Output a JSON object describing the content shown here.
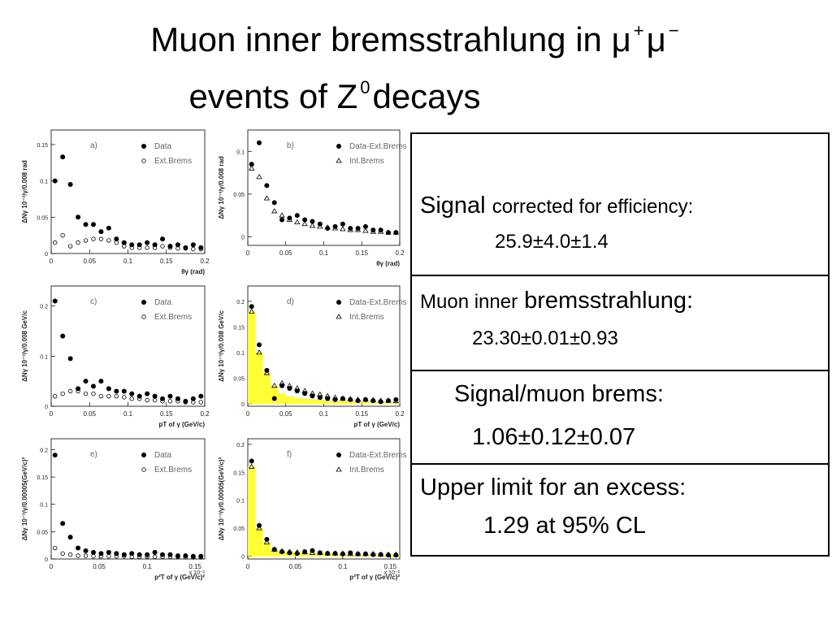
{
  "title": {
    "line1": [
      "Muon inner bremsstrahlung in μ",
      "+",
      "μ",
      "−"
    ],
    "line2": [
      "events of Z",
      "0",
      "decays"
    ]
  },
  "chart_data": [
    {
      "type": "scatter",
      "label": "a)",
      "ylabel": "ΔNγ 10⁻³/γ/0.008 rad",
      "xlabel": "θγ (rad)",
      "xlim": [
        0,
        0.2
      ],
      "xticks": [
        0,
        0.05,
        0.1,
        0.15,
        0.2
      ],
      "ylim": [
        0,
        0.17
      ],
      "yticks": [
        0,
        0.05,
        0.1,
        0.15
      ],
      "x": [
        0.005,
        0.015,
        0.025,
        0.035,
        0.045,
        0.055,
        0.065,
        0.075,
        0.085,
        0.095,
        0.105,
        0.115,
        0.125,
        0.135,
        0.145,
        0.155,
        0.165,
        0.175,
        0.185,
        0.195
      ],
      "series": [
        {
          "name": "Data",
          "marker": "dot",
          "color": "#000000",
          "values": [
            0.1,
            0.133,
            0.095,
            0.05,
            0.04,
            0.04,
            0.03,
            0.035,
            0.02,
            0.015,
            0.012,
            0.012,
            0.015,
            0.012,
            0.02,
            0.01,
            0.012,
            0.008,
            0.012,
            0.008
          ]
        },
        {
          "name": "Ext.Brems",
          "marker": "circle",
          "color": "#000000",
          "values": [
            0.015,
            0.025,
            0.01,
            0.015,
            0.018,
            0.02,
            0.02,
            0.018,
            0.015,
            0.01,
            0.008,
            0.008,
            0.008,
            0.008,
            0.01,
            0.008,
            0.007,
            0.007,
            0.006,
            0.006
          ]
        }
      ]
    },
    {
      "type": "scatter",
      "label": "b)",
      "ylabel": "ΔNγ 10⁻³/γ/0.008 rad",
      "xlabel": "θγ (rad)",
      "xlim": [
        0,
        0.2
      ],
      "xticks": [
        0,
        0.05,
        0.1,
        0.15,
        0.2
      ],
      "ylim": [
        -0.01,
        0.125
      ],
      "yticks": [
        0,
        0.05,
        0.1
      ],
      "x": [
        0.005,
        0.015,
        0.025,
        0.035,
        0.045,
        0.055,
        0.065,
        0.075,
        0.085,
        0.095,
        0.105,
        0.115,
        0.125,
        0.135,
        0.145,
        0.155,
        0.165,
        0.175,
        0.185,
        0.195
      ],
      "series": [
        {
          "name": "Data-Ext.Brems",
          "marker": "dot",
          "color": "#000000",
          "values": [
            0.085,
            0.11,
            0.06,
            0.04,
            0.02,
            0.022,
            0.025,
            0.02,
            0.018,
            0.015,
            0.01,
            0.012,
            0.015,
            0.01,
            0.01,
            0.012,
            0.008,
            0.008,
            0.005,
            0.005
          ]
        },
        {
          "name": "Int.Brems",
          "marker": "triangle",
          "color": "#000000",
          "values": [
            0.08,
            0.07,
            0.045,
            0.03,
            0.025,
            0.02,
            0.017,
            0.015,
            0.013,
            0.012,
            0.011,
            0.01,
            0.009,
            0.008,
            0.008,
            0.007,
            0.006,
            0.006,
            0.005,
            0.005
          ]
        }
      ]
    },
    {
      "type": "scatter",
      "label": "c)",
      "ylabel": "ΔNγ 10⁻³/γ/0.008 GeV/c",
      "xlabel": "pT of γ (GeV/c)",
      "xlim": [
        0,
        0.2
      ],
      "xticks": [
        0,
        0.05,
        0.1,
        0.15,
        0.2
      ],
      "ylim": [
        0,
        0.24
      ],
      "yticks": [
        0,
        0.1,
        0.2
      ],
      "x": [
        0.005,
        0.015,
        0.025,
        0.035,
        0.045,
        0.055,
        0.065,
        0.075,
        0.085,
        0.095,
        0.105,
        0.115,
        0.125,
        0.135,
        0.145,
        0.155,
        0.165,
        0.175,
        0.185,
        0.195
      ],
      "series": [
        {
          "name": "Data",
          "marker": "dot",
          "color": "#000000",
          "values": [
            0.21,
            0.14,
            0.095,
            0.035,
            0.05,
            0.04,
            0.05,
            0.035,
            0.03,
            0.03,
            0.025,
            0.02,
            0.025,
            0.02,
            0.015,
            0.02,
            0.015,
            0.01,
            0.015,
            0.02
          ]
        },
        {
          "name": "Ext.Brems",
          "marker": "circle",
          "color": "#000000",
          "values": [
            0.02,
            0.025,
            0.03,
            0.03,
            0.025,
            0.025,
            0.02,
            0.02,
            0.02,
            0.018,
            0.015,
            0.015,
            0.012,
            0.012,
            0.01,
            0.01,
            0.01,
            0.008,
            0.008,
            0.008
          ]
        }
      ]
    },
    {
      "type": "scatter",
      "label": "d)",
      "ylabel": "ΔNγ 10⁻³/γ/0.008 GeV/c",
      "xlabel": "pT of γ (GeV/c)",
      "xlim": [
        0,
        0.2
      ],
      "xticks": [
        0,
        0.05,
        0.1,
        0.15,
        0.2
      ],
      "ylim": [
        -0.005,
        0.23
      ],
      "yticks": [
        0,
        0.05,
        0.1,
        0.15,
        0.2
      ],
      "x": [
        0.005,
        0.015,
        0.025,
        0.035,
        0.045,
        0.055,
        0.065,
        0.075,
        0.085,
        0.095,
        0.105,
        0.115,
        0.125,
        0.135,
        0.145,
        0.155,
        0.165,
        0.175,
        0.185,
        0.195
      ],
      "series": [
        {
          "color": "#ffff33",
          "marker": "histogram",
          "values": [
            0.18,
            0.1,
            0.06,
            0.035,
            0.02,
            0.015,
            0.012,
            0.01,
            0.009,
            0.008,
            0.007,
            0.006,
            0.006,
            0.005,
            0.005,
            0.004,
            0.004,
            0.004,
            0.003,
            0.003
          ]
        },
        {
          "name": "Data-Ext.Brems",
          "marker": "dot",
          "color": "#000000",
          "values": [
            0.19,
            0.115,
            0.065,
            0.01,
            0.035,
            0.03,
            0.025,
            0.02,
            0.015,
            0.012,
            0.01,
            0.008,
            0.01,
            0.008,
            0.006,
            0.008,
            0.006,
            0.004,
            0.006,
            0.008
          ]
        },
        {
          "name": "Int.Brems",
          "marker": "triangle",
          "color": "#000000",
          "values": [
            0.18,
            0.1,
            0.06,
            0.035,
            0.04,
            0.035,
            0.03,
            0.025,
            0.02,
            0.018,
            0.015,
            0.012,
            0.01,
            0.009,
            0.008,
            0.008,
            0.007,
            0.006,
            0.006,
            0.005
          ]
        }
      ]
    },
    {
      "type": "scatter",
      "label": "e)",
      "ylabel": "ΔNγ 10⁻³/γ/0.00005(GeV/c)²",
      "xlabel": "p²T of γ (GeV/c)²",
      "xscale": "x 10⁻²",
      "xlim": [
        0,
        0.16
      ],
      "xticks": [
        0,
        0.05,
        0.1,
        0.15
      ],
      "ylim": [
        0,
        0.22
      ],
      "yticks": [
        0,
        0.05,
        0.1,
        0.15,
        0.2
      ],
      "x": [
        0.004,
        0.012,
        0.02,
        0.028,
        0.036,
        0.044,
        0.052,
        0.06,
        0.068,
        0.076,
        0.084,
        0.092,
        0.1,
        0.108,
        0.116,
        0.124,
        0.132,
        0.14,
        0.148,
        0.156
      ],
      "series": [
        {
          "name": "Data",
          "marker": "dot",
          "color": "#000000",
          "values": [
            0.19,
            0.065,
            0.04,
            0.02,
            0.015,
            0.012,
            0.01,
            0.012,
            0.01,
            0.008,
            0.01,
            0.008,
            0.008,
            0.012,
            0.008,
            0.008,
            0.006,
            0.006,
            0.005,
            0.005
          ]
        },
        {
          "name": "Ext.Brems",
          "marker": "circle",
          "color": "#000000",
          "values": [
            0.02,
            0.01,
            0.008,
            0.006,
            0.006,
            0.005,
            0.005,
            0.005,
            0.005,
            0.005,
            0.004,
            0.004,
            0.004,
            0.004,
            0.004,
            0.004,
            0.004,
            0.003,
            0.003,
            0.003
          ]
        }
      ]
    },
    {
      "type": "scatter",
      "label": "f)",
      "ylabel": "ΔNγ 10⁻³/γ/0.00005(GeV/c)²",
      "xlabel": "p²T of γ (GeV/c)²",
      "xscale": "x 10⁻²",
      "xlim": [
        0,
        0.16
      ],
      "xticks": [
        0,
        0.05,
        0.1,
        0.15
      ],
      "ylim": [
        -0.005,
        0.21
      ],
      "yticks": [
        0,
        0.05,
        0.1,
        0.15,
        0.2
      ],
      "x": [
        0.004,
        0.012,
        0.02,
        0.028,
        0.036,
        0.044,
        0.052,
        0.06,
        0.068,
        0.076,
        0.084,
        0.092,
        0.1,
        0.108,
        0.116,
        0.124,
        0.132,
        0.14,
        0.148,
        0.156
      ],
      "series": [
        {
          "color": "#ffff33",
          "marker": "histogram",
          "values": [
            0.16,
            0.05,
            0.025,
            0.012,
            0.009,
            0.008,
            0.007,
            0.007,
            0.006,
            0.006,
            0.005,
            0.005,
            0.005,
            0.004,
            0.004,
            0.004,
            0.004,
            0.003,
            0.003,
            0.003
          ]
        },
        {
          "name": "Data-Ext.Brems",
          "marker": "dot",
          "color": "#000000",
          "values": [
            0.17,
            0.055,
            0.03,
            0.012,
            0.008,
            0.006,
            0.005,
            0.008,
            0.01,
            0.006,
            0.005,
            0.005,
            0.004,
            0.006,
            0.004,
            0.004,
            0.003,
            0.003,
            0.002,
            0.002
          ]
        },
        {
          "name": "Int.Brems",
          "marker": "triangle",
          "color": "#000000",
          "values": [
            0.16,
            0.05,
            0.025,
            0.012,
            0.009,
            0.008,
            0.007,
            0.007,
            0.006,
            0.006,
            0.005,
            0.005,
            0.005,
            0.004,
            0.004,
            0.004,
            0.004,
            0.003,
            0.003,
            0.003
          ]
        }
      ]
    }
  ],
  "table": {
    "rows": [
      {
        "head": [
          "Signal",
          "corrected for efficiency:"
        ],
        "value": "25.9±4.0±1.4"
      },
      {
        "head": [
          "Muon inner",
          "bremsstrahlung:"
        ],
        "value": "23.30±0.01±0.93"
      },
      {
        "head": [
          "Signal/muon brems:"
        ],
        "value": "1.06±0.12±0.07"
      },
      {
        "head": [
          "Upper limit for an excess:"
        ],
        "value": "1.29 at 95% CL"
      }
    ]
  }
}
